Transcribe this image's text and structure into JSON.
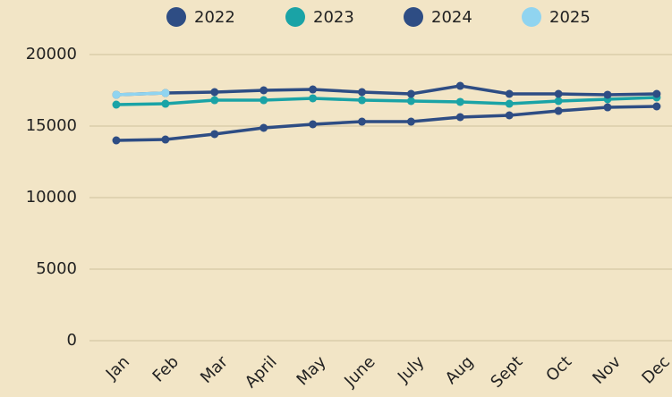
{
  "chart_data": {
    "type": "line",
    "categories": [
      "Jan",
      "Feb",
      "Mar",
      "April",
      "May",
      "June",
      "July",
      "Aug",
      "Sept",
      "Oct",
      "Nov",
      "Dec"
    ],
    "series": [
      {
        "name": "2022",
        "color": "#2e4d84",
        "values": [
          14000,
          14060,
          14440,
          14875,
          15125,
          15310,
          15310,
          15625,
          15750,
          16060,
          16310,
          16375
        ]
      },
      {
        "name": "2023",
        "color": "#1aa3a6",
        "values": [
          16500,
          16560,
          16810,
          16810,
          16940,
          16810,
          16750,
          16690,
          16560,
          16750,
          16875,
          17000
        ]
      },
      {
        "name": "2024",
        "color": "#2e4d84",
        "values": [
          17190,
          17310,
          17375,
          17500,
          17560,
          17375,
          17250,
          17810,
          17250,
          17250,
          17190,
          17250
        ]
      },
      {
        "name": "2025",
        "color": "#90d4f0",
        "values": [
          17190,
          17310,
          null,
          null,
          null,
          null,
          null,
          null,
          null,
          null,
          null,
          null
        ]
      }
    ],
    "ylim": [
      0,
      20000
    ],
    "yticks": [
      0,
      5000,
      10000,
      15000,
      20000
    ],
    "grid": true,
    "legend": "top"
  }
}
